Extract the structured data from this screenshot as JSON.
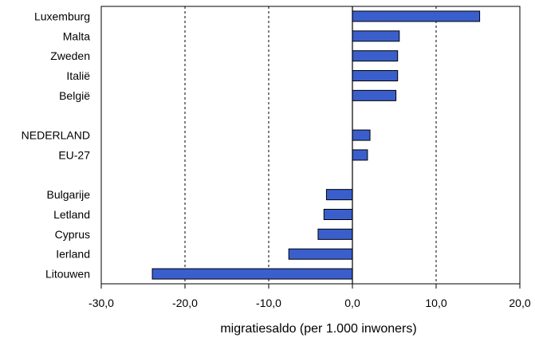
{
  "chart_data": {
    "type": "bar",
    "orientation": "horizontal",
    "xlabel": "migratiesaldo (per 1.000 inwoners)",
    "xlim": [
      -30,
      20
    ],
    "xticks": [
      -30,
      -20,
      -10,
      0,
      10,
      20
    ],
    "xtick_labels": [
      "-30,0",
      "-20,0",
      "-10,0",
      "0,0",
      "10,0",
      "20,0"
    ],
    "gridlines": [
      -20,
      -10,
      10
    ],
    "bar_color": "#3a5fcd",
    "bar_edge_color": "#000000",
    "categories": [
      "Luxemburg",
      "Malta",
      "Zweden",
      "Italië",
      "België",
      "",
      "NEDERLAND",
      "EU-27",
      "",
      "Bulgarije",
      "Letland",
      "Cyprus",
      "Ierland",
      "Litouwen"
    ],
    "values": [
      15.2,
      5.6,
      5.4,
      5.4,
      5.2,
      null,
      2.1,
      1.8,
      null,
      -3.1,
      -3.4,
      -4.1,
      -7.6,
      -23.9
    ]
  }
}
